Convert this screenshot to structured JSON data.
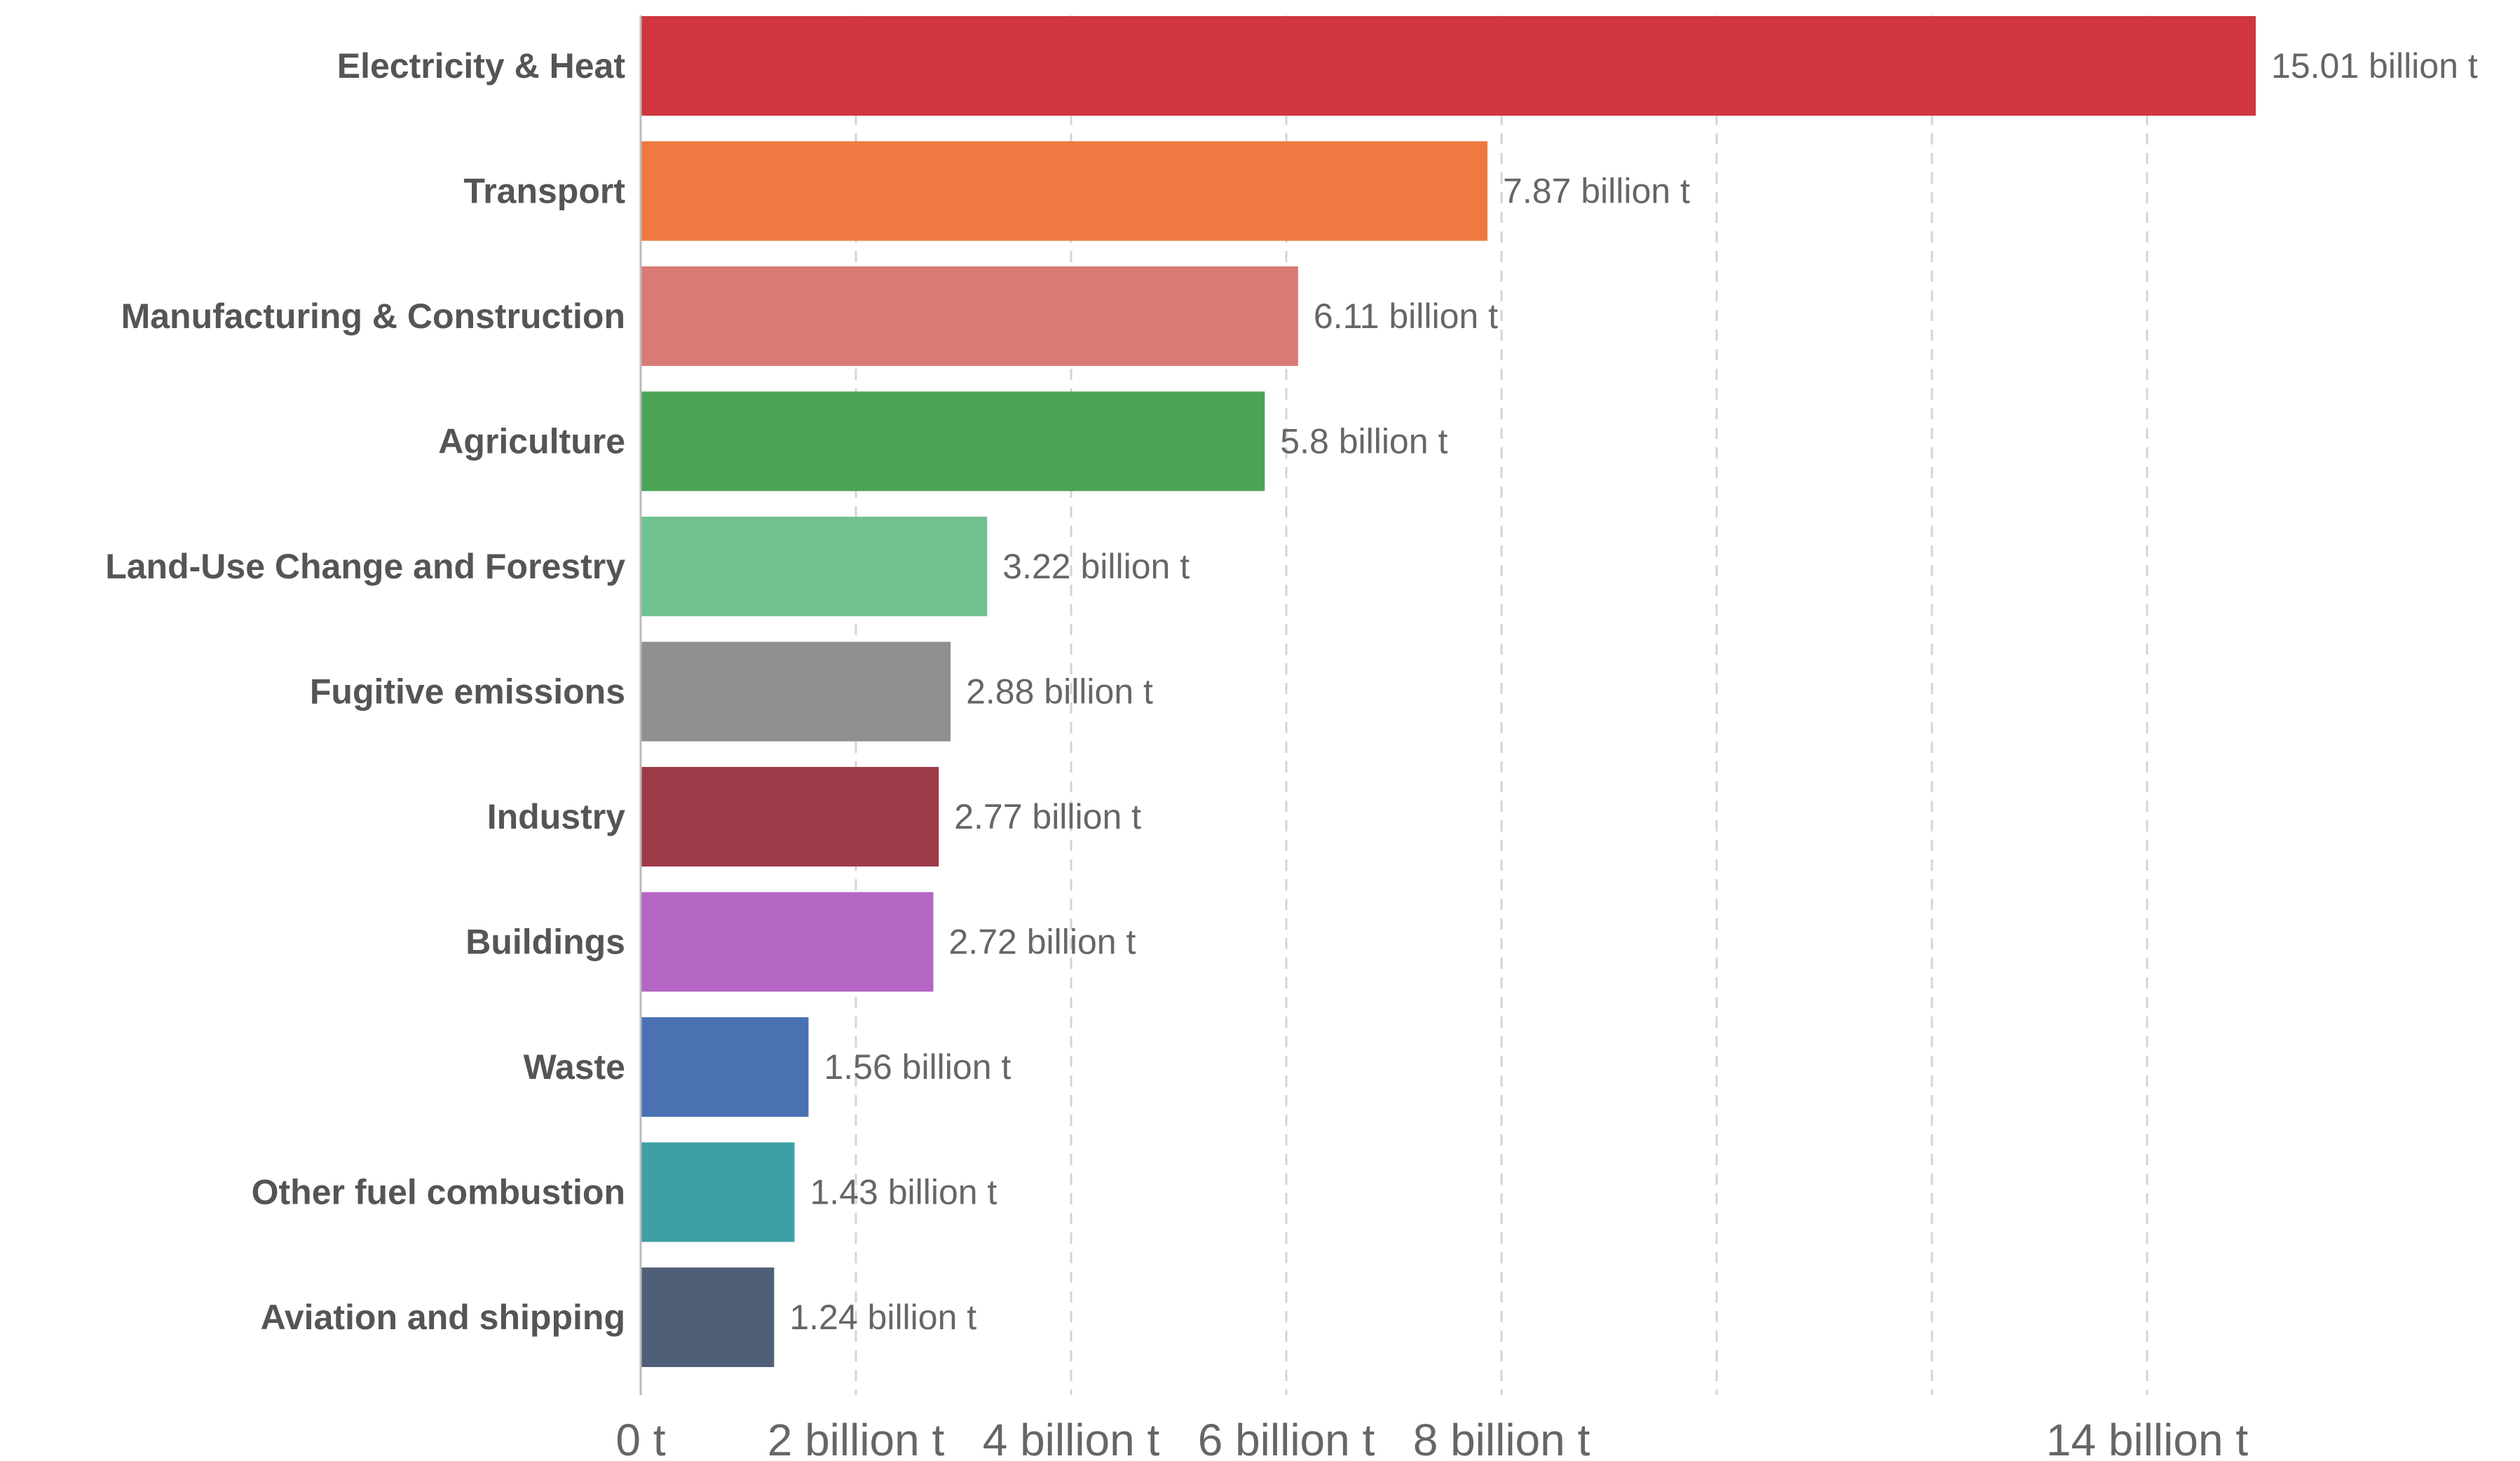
{
  "chart_data": {
    "type": "bar",
    "orientation": "horizontal",
    "categories": [
      "Electricity & Heat",
      "Transport",
      "Manufacturing & Construction",
      "Agriculture",
      "Land-Use Change and Forestry",
      "Fugitive emissions",
      "Industry",
      "Buildings",
      "Waste",
      "Other fuel combustion",
      "Aviation and shipping"
    ],
    "values": [
      15.01,
      7.87,
      6.11,
      5.8,
      3.22,
      2.88,
      2.77,
      2.72,
      1.56,
      1.43,
      1.24
    ],
    "value_labels": [
      "15.01 billion t",
      "7.87 billion t",
      "6.11 billion t",
      "5.8 billion t",
      "3.22 billion t",
      "2.88 billion t",
      "2.77 billion t",
      "2.72 billion t",
      "1.56 billion t",
      "1.43 billion t",
      "1.24 billion t"
    ],
    "colors": [
      "#cf363d",
      "#ee7a41",
      "#d87b74",
      "#4ca457",
      "#72c291",
      "#8e8f8e",
      "#9d3a48",
      "#b366c3",
      "#4a72b3",
      "#3f9fa6",
      "#505f78"
    ],
    "xlim": [
      0,
      16
    ],
    "gridlines": [
      2,
      4,
      6,
      8,
      10,
      12,
      14
    ],
    "ticks": [
      {
        "value": 0,
        "label": "0 t"
      },
      {
        "value": 2,
        "label": "2 billion t"
      },
      {
        "value": 4,
        "label": "4 billion t"
      },
      {
        "value": 6,
        "label": "6 billion t"
      },
      {
        "value": 8,
        "label": "8 billion t"
      },
      {
        "value": 14,
        "label": "14 billion t"
      }
    ],
    "grid": true,
    "title": "",
    "xlabel": "",
    "ylabel": ""
  }
}
